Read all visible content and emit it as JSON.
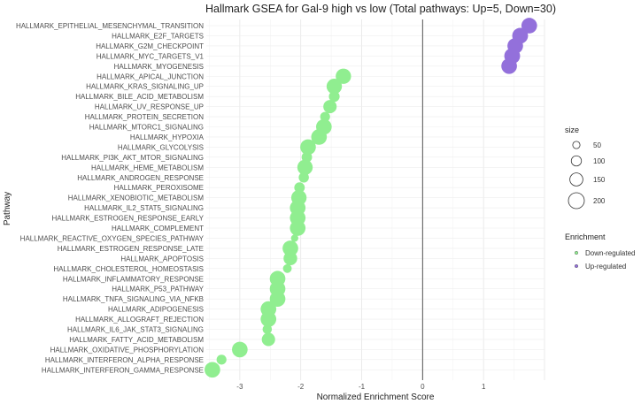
{
  "chart_data": {
    "type": "scatter",
    "title": "Hallmark GSEA for Gal-9 high vs low (Total pathways: Up=5, Down=30)",
    "xlabel": "Normalized Enrichment Score",
    "ylabel": "Pathway",
    "xlim": [
      -3.55,
      2.0
    ],
    "x_ticks": [
      -3,
      -2,
      -1,
      0,
      1
    ],
    "x_tick_labels": [
      "-3",
      "-2",
      "-1",
      "0",
      "1"
    ],
    "reference_line_x": 0,
    "grid": true,
    "legend_position": "right",
    "size_legend": {
      "title": "size",
      "values": [
        50,
        100,
        150,
        200
      ],
      "labels": [
        "50",
        "100",
        "150",
        "200"
      ]
    },
    "color_legend": {
      "title": "Enrichment",
      "entries": [
        {
          "label": "Down-regulated",
          "color": "#90EE90"
        },
        {
          "label": "Up-regulated",
          "color": "#9370DB"
        }
      ]
    },
    "points": [
      {
        "pathway": "HALLMARK_EPITHELIAL_MESENCHYMAL_TRANSITION",
        "nes": 1.75,
        "size": 195,
        "group": "Up-regulated"
      },
      {
        "pathway": "HALLMARK_E2F_TARGETS",
        "nes": 1.6,
        "size": 198,
        "group": "Up-regulated"
      },
      {
        "pathway": "HALLMARK_G2M_CHECKPOINT",
        "nes": 1.52,
        "size": 195,
        "group": "Up-regulated"
      },
      {
        "pathway": "HALLMARK_MYC_TARGETS_V1",
        "nes": 1.47,
        "size": 198,
        "group": "Up-regulated"
      },
      {
        "pathway": "HALLMARK_MYOGENESIS",
        "nes": 1.42,
        "size": 195,
        "group": "Up-regulated"
      },
      {
        "pathway": "HALLMARK_APICAL_JUNCTION",
        "nes": -1.3,
        "size": 190,
        "group": "Down-regulated"
      },
      {
        "pathway": "HALLMARK_KRAS_SIGNALING_UP",
        "nes": -1.45,
        "size": 190,
        "group": "Down-regulated"
      },
      {
        "pathway": "HALLMARK_BILE_ACID_METABOLISM",
        "nes": -1.45,
        "size": 110,
        "group": "Down-regulated"
      },
      {
        "pathway": "HALLMARK_UV_RESPONSE_UP",
        "nes": -1.52,
        "size": 155,
        "group": "Down-regulated"
      },
      {
        "pathway": "HALLMARK_PROTEIN_SECRETION",
        "nes": -1.6,
        "size": 95,
        "group": "Down-regulated"
      },
      {
        "pathway": "HALLMARK_MTORC1_SIGNALING",
        "nes": -1.62,
        "size": 195,
        "group": "Down-regulated"
      },
      {
        "pathway": "HALLMARK_HYPOXIA",
        "nes": -1.7,
        "size": 195,
        "group": "Down-regulated"
      },
      {
        "pathway": "HALLMARK_GLYCOLYSIS",
        "nes": -1.88,
        "size": 195,
        "group": "Down-regulated"
      },
      {
        "pathway": "HALLMARK_PI3K_AKT_MTOR_SIGNALING",
        "nes": -1.9,
        "size": 105,
        "group": "Down-regulated"
      },
      {
        "pathway": "HALLMARK_HEME_METABOLISM",
        "nes": -1.93,
        "size": 190,
        "group": "Down-regulated"
      },
      {
        "pathway": "HALLMARK_ANDROGEN_RESPONSE",
        "nes": -1.95,
        "size": 100,
        "group": "Down-regulated"
      },
      {
        "pathway": "HALLMARK_PEROXISOME",
        "nes": -2.02,
        "size": 105,
        "group": "Down-regulated"
      },
      {
        "pathway": "HALLMARK_XENOBIOTIC_METABOLISM",
        "nes": -2.03,
        "size": 190,
        "group": "Down-regulated"
      },
      {
        "pathway": "HALLMARK_IL2_STAT5_SIGNALING",
        "nes": -2.05,
        "size": 195,
        "group": "Down-regulated"
      },
      {
        "pathway": "HALLMARK_ESTROGEN_RESPONSE_EARLY",
        "nes": -2.05,
        "size": 195,
        "group": "Down-regulated"
      },
      {
        "pathway": "HALLMARK_COMPLEMENT",
        "nes": -2.05,
        "size": 195,
        "group": "Down-regulated"
      },
      {
        "pathway": "HALLMARK_REACTIVE_OXYGEN_SPECIES_PATHWAY",
        "nes": -2.1,
        "size": 50,
        "group": "Down-regulated"
      },
      {
        "pathway": "HALLMARK_ESTROGEN_RESPONSE_LATE",
        "nes": -2.17,
        "size": 195,
        "group": "Down-regulated"
      },
      {
        "pathway": "HALLMARK_APOPTOSIS",
        "nes": -2.17,
        "size": 160,
        "group": "Down-regulated"
      },
      {
        "pathway": "HALLMARK_CHOLESTEROL_HOMEOSTASIS",
        "nes": -2.22,
        "size": 75,
        "group": "Down-regulated"
      },
      {
        "pathway": "HALLMARK_INFLAMMATORY_RESPONSE",
        "nes": -2.38,
        "size": 195,
        "group": "Down-regulated"
      },
      {
        "pathway": "HALLMARK_P53_PATHWAY",
        "nes": -2.38,
        "size": 195,
        "group": "Down-regulated"
      },
      {
        "pathway": "HALLMARK_TNFA_SIGNALING_VIA_NFKB",
        "nes": -2.38,
        "size": 195,
        "group": "Down-regulated"
      },
      {
        "pathway": "HALLMARK_ADIPOGENESIS",
        "nes": -2.53,
        "size": 195,
        "group": "Down-regulated"
      },
      {
        "pathway": "HALLMARK_ALLOGRAFT_REJECTION",
        "nes": -2.53,
        "size": 195,
        "group": "Down-regulated"
      },
      {
        "pathway": "HALLMARK_IL6_JAK_STAT3_SIGNALING",
        "nes": -2.55,
        "size": 85,
        "group": "Down-regulated"
      },
      {
        "pathway": "HALLMARK_FATTY_ACID_METABOLISM",
        "nes": -2.53,
        "size": 155,
        "group": "Down-regulated"
      },
      {
        "pathway": "HALLMARK_OXIDATIVE_PHOSPHORYLATION",
        "nes": -3.0,
        "size": 195,
        "group": "Down-regulated"
      },
      {
        "pathway": "HALLMARK_INTERFERON_ALPHA_RESPONSE",
        "nes": -3.3,
        "size": 95,
        "group": "Down-regulated"
      },
      {
        "pathway": "HALLMARK_INTERFERON_GAMMA_RESPONSE",
        "nes": -3.45,
        "size": 195,
        "group": "Down-regulated"
      }
    ]
  }
}
